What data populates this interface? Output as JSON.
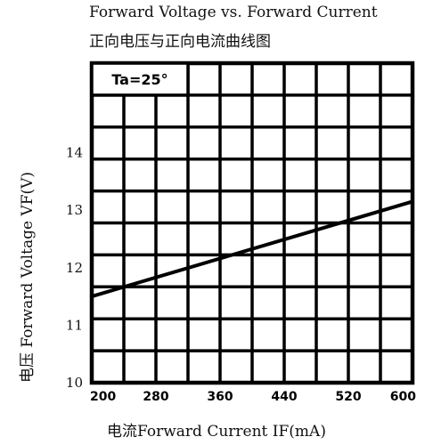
{
  "chart_data": {
    "type": "line",
    "title": "Forward Voltage vs. Forward Current",
    "subtitle": "正向电压与正向电流曲线图",
    "xlabel": "电流Forward Current IF(mA)",
    "ylabel": "电压 Forward Voltage VF(V)",
    "xlim": [
      200,
      600
    ],
    "ylim": [
      10,
      15
    ],
    "x_ticks": [
      "200",
      "280",
      "360",
      "440",
      "520",
      "600"
    ],
    "y_ticks": [
      "10",
      "11",
      "12",
      "13",
      "14"
    ],
    "grid": true,
    "annotation": "Ta=25°",
    "series": [
      {
        "x": [
          200,
          600
        ],
        "y": [
          11.5,
          13.15
        ]
      }
    ]
  }
}
